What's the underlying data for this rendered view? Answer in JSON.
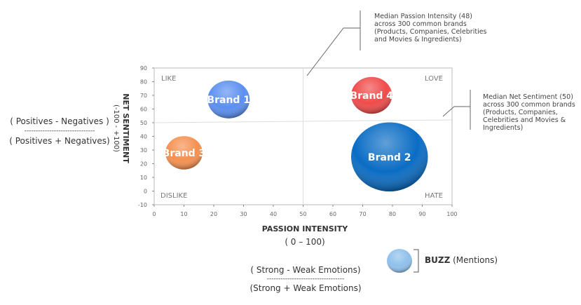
{
  "chart_data": {
    "type": "bubble",
    "xlabel": "PASSION INTENSITY",
    "xlabel_sub": "( 0 – 100)",
    "ylabel": "NET SENTIMENT",
    "ylabel_sub": "(-100 - +100)",
    "xlim": [
      0,
      100
    ],
    "ylim": [
      -10,
      90
    ],
    "xticks": [
      0,
      10,
      20,
      30,
      40,
      50,
      60,
      70,
      80,
      90,
      100
    ],
    "yticks": [
      90,
      80,
      70,
      60,
      50,
      40,
      30,
      20,
      10,
      0,
      -10
    ],
    "grid": false,
    "quadrants": {
      "top_left": "LIKE",
      "top_right": "LOVE",
      "bottom_left": "DISLIKE",
      "bottom_right": "HATE"
    },
    "median_x": 48,
    "median_y": 50,
    "series": [
      {
        "name": "Brand 1",
        "x": 25,
        "y": 67,
        "size": 9,
        "color": "#5b8ff0"
      },
      {
        "name": "Brand 2",
        "x": 79,
        "y": 25,
        "size": 30,
        "color": "#0a6cc4"
      },
      {
        "name": "Brand 3",
        "x": 10,
        "y": 28,
        "size": 7,
        "color": "#f59050"
      },
      {
        "name": "Brand 4",
        "x": 73,
        "y": 70,
        "size": 8.5,
        "color": "#f04a4a"
      }
    ],
    "annotations": {
      "median_x_note": "Median Passion Intensity  (48)\nacross 300 common brands\n(Products, Companies, Celebrities\nand Movies & Ingredients)",
      "median_y_note": "Median Net Sentiment (50)\nacross 300 common brands\n(Products, Companies,\nCelebrities and Movies &\nIngredients)"
    },
    "legend": {
      "bold": "BUZZ",
      "rest": " (Mentions)",
      "color": "#8fc0ea"
    },
    "y_formula": {
      "top": "( Positives - Negatives )",
      "line": "-------------------------------",
      "bottom": "( Positives + Negatives)"
    },
    "x_formula": {
      "top": "( Strong - Weak Emotions)",
      "line": "----------------------------------",
      "bottom": "(Strong + Weak Emotions)"
    }
  }
}
